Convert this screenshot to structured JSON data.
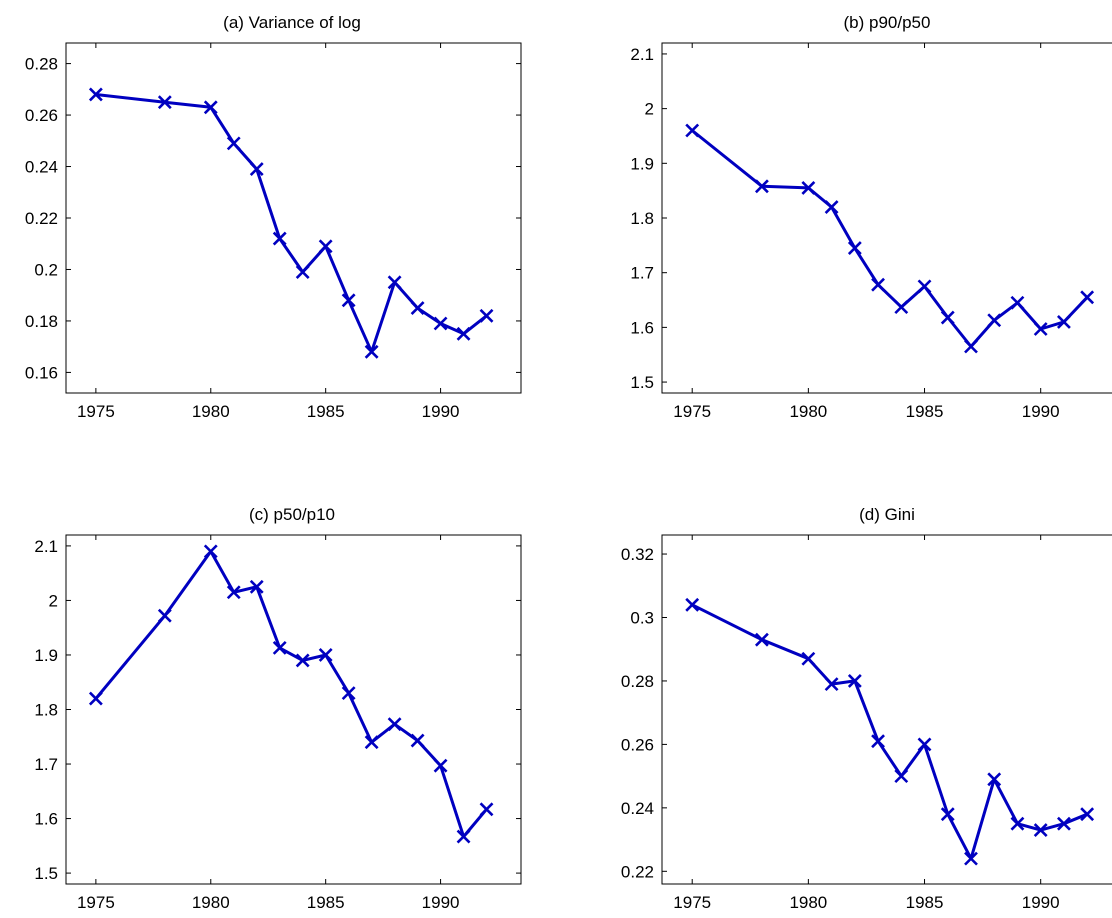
{
  "colors": {
    "series": "#0000c0",
    "axes": "#000000",
    "background": "#ffffff"
  },
  "chart_data": [
    {
      "type": "line",
      "title": "(a) Variance of log",
      "x": [
        1975,
        1978,
        1980,
        1981,
        1982,
        1983,
        1984,
        1985,
        1986,
        1987,
        1988,
        1989,
        1990,
        1991,
        1992
      ],
      "series": [
        {
          "values": [
            0.268,
            0.265,
            0.263,
            0.249,
            0.239,
            0.212,
            0.199,
            0.209,
            0.188,
            0.168,
            0.195,
            0.185,
            0.179,
            0.175,
            0.182
          ]
        }
      ],
      "xlim": [
        1973.7,
        1993.5
      ],
      "ylim": [
        0.152,
        0.288
      ],
      "xticks": [
        1975,
        1980,
        1985,
        1990
      ],
      "yticks": [
        0.16,
        0.18,
        0.2,
        0.22,
        0.24,
        0.26,
        0.28
      ],
      "xtick_labels": [
        "1975",
        "1980",
        "1985",
        "1990"
      ],
      "ytick_labels": [
        "0.16",
        "0.18",
        "0.2",
        "0.22",
        "0.24",
        "0.26",
        "0.28"
      ],
      "marker": "x",
      "grid": false
    },
    {
      "type": "line",
      "title": "(b) p90/p50",
      "x": [
        1975,
        1978,
        1980,
        1981,
        1982,
        1983,
        1984,
        1985,
        1986,
        1987,
        1988,
        1989,
        1990,
        1991,
        1992
      ],
      "series": [
        {
          "values": [
            1.96,
            1.858,
            1.855,
            1.82,
            1.745,
            1.678,
            1.637,
            1.675,
            1.618,
            1.565,
            1.613,
            1.645,
            1.597,
            1.61,
            1.655
          ]
        }
      ],
      "xlim": [
        1973.7,
        1993.5
      ],
      "ylim": [
        1.48,
        2.12
      ],
      "xticks": [
        1975,
        1980,
        1985,
        1990
      ],
      "yticks": [
        1.5,
        1.6,
        1.7,
        1.8,
        1.9,
        2,
        2.1
      ],
      "xtick_labels": [
        "1975",
        "1980",
        "1985",
        "1990"
      ],
      "ytick_labels": [
        "1.5",
        "1.6",
        "1.7",
        "1.8",
        "1.9",
        "2",
        "2.1"
      ],
      "marker": "x",
      "grid": false
    },
    {
      "type": "line",
      "title": "(c) p50/p10",
      "x": [
        1975,
        1978,
        1980,
        1981,
        1982,
        1983,
        1984,
        1985,
        1986,
        1987,
        1988,
        1989,
        1990,
        1991,
        1992
      ],
      "series": [
        {
          "values": [
            1.82,
            1.972,
            2.09,
            2.015,
            2.025,
            1.913,
            1.89,
            1.9,
            1.83,
            1.74,
            1.773,
            1.743,
            1.697,
            1.567,
            1.617
          ]
        }
      ],
      "xlim": [
        1973.7,
        1993.5
      ],
      "ylim": [
        1.48,
        2.12
      ],
      "xticks": [
        1975,
        1980,
        1985,
        1990
      ],
      "yticks": [
        1.5,
        1.6,
        1.7,
        1.8,
        1.9,
        2,
        2.1
      ],
      "xtick_labels": [
        "1975",
        "1980",
        "1985",
        "1990"
      ],
      "ytick_labels": [
        "1.5",
        "1.6",
        "1.7",
        "1.8",
        "1.9",
        "2",
        "2.1"
      ],
      "marker": "x",
      "grid": false
    },
    {
      "type": "line",
      "title": "(d) Gini",
      "x": [
        1975,
        1978,
        1980,
        1981,
        1982,
        1983,
        1984,
        1985,
        1986,
        1987,
        1988,
        1989,
        1990,
        1991,
        1992
      ],
      "series": [
        {
          "values": [
            0.304,
            0.293,
            0.287,
            0.279,
            0.28,
            0.261,
            0.25,
            0.26,
            0.238,
            0.224,
            0.249,
            0.235,
            0.233,
            0.235,
            0.238
          ]
        }
      ],
      "xlim": [
        1973.7,
        1993.5
      ],
      "ylim": [
        0.216,
        0.326
      ],
      "xticks": [
        1975,
        1980,
        1985,
        1990
      ],
      "yticks": [
        0.22,
        0.24,
        0.26,
        0.28,
        0.3,
        0.32
      ],
      "xtick_labels": [
        "1975",
        "1980",
        "1985",
        "1990"
      ],
      "ytick_labels": [
        "0.22",
        "0.24",
        "0.26",
        "0.28",
        "0.3",
        "0.32"
      ],
      "marker": "x",
      "grid": false
    }
  ]
}
